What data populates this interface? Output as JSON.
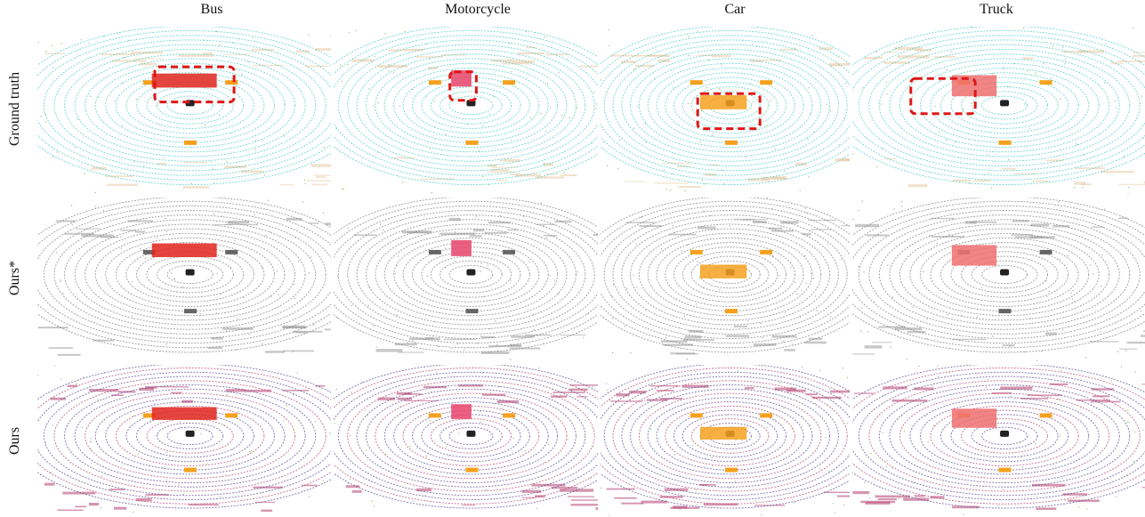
{
  "columns": [
    "Bus",
    "Motorcycle",
    "Car",
    "Truck"
  ],
  "rows": [
    "Ground truth",
    "Ours*",
    "Ours"
  ],
  "colors": {
    "ground": "#3fc9c0",
    "vegetation": "#6fb24a",
    "building": "#e7c8a4",
    "car": "#f4a11e",
    "bus": "#e0251c",
    "truck": "#ef6f6f",
    "motorcycle": "#e7436a",
    "gray": "#7a7a7a",
    "purple": "#5a3f8a",
    "magenta": "#b23e6e",
    "highlight_box": "#e01616"
  }
}
